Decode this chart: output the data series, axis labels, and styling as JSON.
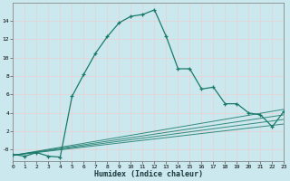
{
  "xlabel": "Humidex (Indice chaleur)",
  "background_color": "#cbe8ef",
  "grid_color": "#dce8e8",
  "line_color": "#1a7a6a",
  "x_main": [
    0,
    1,
    2,
    3,
    4,
    5,
    6,
    7,
    8,
    9,
    10,
    11,
    12,
    13,
    14,
    15,
    16,
    17,
    18,
    19,
    20,
    21,
    22,
    23
  ],
  "y_main": [
    -0.5,
    -0.7,
    -0.3,
    -0.7,
    -0.8,
    5.8,
    8.2,
    10.5,
    12.3,
    13.8,
    14.5,
    14.7,
    15.2,
    12.3,
    8.8,
    8.8,
    6.6,
    6.8,
    5.0,
    5.0,
    4.0,
    3.8,
    2.5,
    4.2
  ],
  "lines_flat": [
    {
      "x": [
        0,
        23
      ],
      "y": [
        -0.6,
        4.4
      ]
    },
    {
      "x": [
        0,
        23
      ],
      "y": [
        -0.6,
        3.8
      ]
    },
    {
      "x": [
        0,
        23
      ],
      "y": [
        -0.6,
        3.3
      ]
    },
    {
      "x": [
        0,
        23
      ],
      "y": [
        -0.6,
        2.8
      ]
    }
  ],
  "xlim": [
    0,
    23
  ],
  "ylim": [
    -1.2,
    16
  ],
  "yticks": [
    0,
    2,
    4,
    6,
    8,
    10,
    12,
    14
  ],
  "ytick_labels": [
    "-0",
    "2",
    "4",
    "6",
    "8",
    "10",
    "12",
    "14"
  ],
  "xticks": [
    0,
    1,
    2,
    3,
    4,
    5,
    6,
    7,
    8,
    9,
    10,
    11,
    12,
    13,
    14,
    15,
    16,
    17,
    18,
    19,
    20,
    21,
    22,
    23
  ],
  "xtick_labels": [
    "0",
    "1",
    "2",
    "3",
    "4",
    "5",
    "6",
    "7",
    "8",
    "9",
    "10",
    "11",
    "12",
    "13",
    "14",
    "15",
    "16",
    "17",
    "18",
    "19",
    "20",
    "21",
    "22",
    "23"
  ],
  "figsize": [
    3.2,
    2.0
  ],
  "dpi": 100
}
